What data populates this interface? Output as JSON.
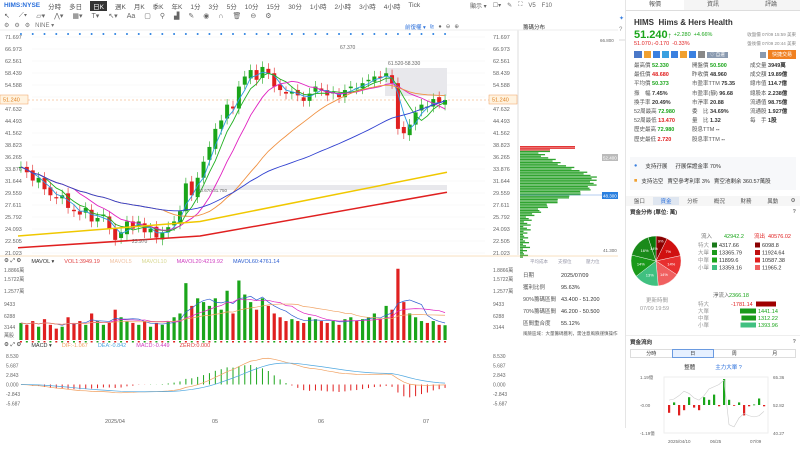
{
  "topbar": {
    "symbol": "HIMS:NYSE",
    "periods": [
      "分時",
      "多日",
      "日K",
      "週K",
      "月K",
      "季K",
      "年K",
      "1分",
      "3分",
      "5分",
      "10分",
      "15分",
      "30分",
      "1小時",
      "2小時",
      "3小時",
      "4小時",
      "Tick"
    ],
    "active_period": "日K"
  },
  "top_right": {
    "display": "顯示",
    "v5": "V5",
    "f10": "F10"
  },
  "indicator_row": {
    "name": "NINE"
  },
  "chart_ctrl": {
    "adjust": "前復權",
    "chip_title": "籌碼分布"
  },
  "price_axis": [
    "71.697",
    "66.973",
    "62.561",
    "58.439",
    "54.588",
    "51.240",
    "47.632",
    "44.493",
    "41.562",
    "38.823",
    "36.265",
    "33.876",
    "31.644",
    "29.559",
    "27.611",
    "25.792",
    "24.093",
    "22.505",
    "21.023"
  ],
  "current_price_tag": "51.240",
  "annotations": {
    "high": "67.370",
    "range": "61.520-58.330",
    "gap": "30.670-31.750",
    "low": "23.970"
  },
  "prices": [
    36,
    35,
    33.5,
    34,
    32,
    31,
    30.5,
    31,
    29,
    28.5,
    28,
    29,
    27,
    27.5,
    28,
    26,
    24.5,
    25.5,
    27,
    26,
    27,
    25.5,
    26,
    24.8,
    25.5,
    26.2,
    27,
    28.5,
    33,
    31,
    34,
    37,
    40,
    44,
    46,
    50,
    49,
    55,
    58,
    60,
    57,
    61,
    59,
    55,
    54,
    53,
    53.5,
    52.5,
    51,
    53,
    55,
    54,
    52.5,
    53.5,
    52,
    54,
    55,
    54.5,
    56,
    57,
    58,
    57.5,
    59,
    56,
    44,
    43,
    45,
    48,
    50,
    49.5,
    51.5,
    50.5,
    51.24
  ],
  "volumes": [
    0.45,
    0.4,
    0.5,
    0.35,
    0.55,
    0.4,
    0.3,
    0.35,
    0.6,
    0.45,
    0.5,
    0.4,
    0.7,
    0.5,
    0.4,
    0.45,
    0.8,
    0.6,
    0.5,
    0.45,
    0.4,
    0.5,
    0.35,
    0.45,
    0.4,
    0.5,
    0.6,
    0.7,
    1.5,
    0.9,
    1.1,
    1.0,
    0.9,
    1.1,
    0.8,
    1.3,
    0.7,
    1.57,
    1.2,
    1.0,
    0.8,
    1.1,
    0.9,
    0.7,
    0.6,
    0.5,
    0.55,
    0.5,
    0.45,
    0.6,
    0.55,
    0.5,
    0.45,
    0.5,
    0.4,
    0.55,
    0.6,
    0.5,
    0.55,
    0.6,
    0.7,
    0.55,
    0.9,
    0.8,
    1.88,
    1.0,
    0.7,
    0.6,
    0.5,
    0.45,
    0.5,
    0.4,
    0.39
  ],
  "mavol": {
    "label": "MAVOL",
    "vol1": "VOL1:3949.19",
    "m5": "MAVOL5",
    "m10": "MAVOL10",
    "m20": "MAVOL20:4219.92",
    "m60": "MAVOL60:4761.14"
  },
  "vol_axis": [
    "1.8866萬",
    "1.5722萬",
    "1.2577萬",
    "9433",
    "6288",
    "3144",
    "萬股"
  ],
  "macd": {
    "label": "MACD",
    "dif": "DIF:-1.067",
    "dea": "DEA:-0.842",
    "macd": "MACD:-0.449",
    "zero": "ZERO:0.000"
  },
  "macd_axis": [
    "8.530",
    "5.687",
    "2.843",
    "0.000",
    "-2.843",
    "-5.687"
  ],
  "date_axis": [
    "2025/04",
    "05",
    "06",
    "07"
  ],
  "chip": {
    "top": "66.800",
    "mid_tag": "48.300",
    "top_tag": "52.400",
    "bottom": "41.300",
    "legend": [
      "平均成本",
      "支撐位",
      "壓力位"
    ],
    "rows": [
      {
        "k": "日期",
        "v": "2025/07/09"
      },
      {
        "k": "獲利比例",
        "v": "95.63%"
      },
      {
        "k": "90%籌碼區間",
        "v": "43.400 - 51.200"
      },
      {
        "k": "70%籌碼區間",
        "v": "46.200 - 50.500"
      },
      {
        "k": "區間重合度",
        "v": "55.12%"
      }
    ],
    "note": "風險區域：大量籌碼獲利，需注意風險謹慎操作"
  },
  "rp": {
    "tabs": [
      "報價",
      "資訊",
      "評論"
    ],
    "ticker": "HIMS",
    "name": "Hims & Hers Health",
    "price": "51.240",
    "change": "+2.280",
    "pct": "+4.66%",
    "close_note": "收盤價 07/09 15:59 美東",
    "ah_price": "51.070",
    "ah_change": "-0.170",
    "ah_pct": "-0.33%",
    "ah_note": "盤後價 07/09 20:44 美東",
    "quick_trade": "快捷交易",
    "self_select": "自選",
    "stats": [
      [
        "最高價",
        "52.330",
        "g"
      ],
      [
        "開盤價",
        "50.500",
        "g"
      ],
      [
        "成交量",
        "3949萬",
        ""
      ],
      [
        "最低價",
        "48.680",
        "r"
      ],
      [
        "昨收價",
        "48.960",
        ""
      ],
      [
        "成交額",
        "19.89億",
        ""
      ],
      [
        "平均價",
        "50.373",
        "g"
      ],
      [
        "市盈率TTM",
        "75.35",
        ""
      ],
      [
        "總市值",
        "114.7億",
        ""
      ],
      [
        "振　幅",
        "7.45%",
        ""
      ],
      [
        "市盈率(靜)",
        "96.68",
        ""
      ],
      [
        "總股本",
        "2.238億",
        ""
      ],
      [
        "換手率",
        "20.49%",
        ""
      ],
      [
        "市淨率",
        "20.88",
        ""
      ],
      [
        "流通值",
        "98.75億",
        ""
      ],
      [
        "52周最高",
        "72.980",
        "g"
      ],
      [
        "委　比",
        "34.69%",
        ""
      ],
      [
        "流通股",
        "1.927億",
        ""
      ],
      [
        "52周最低",
        "13.470",
        "r"
      ],
      [
        "量　比",
        "1.32",
        ""
      ],
      [
        "每　手",
        "1股",
        ""
      ],
      [
        "歷史最高",
        "72.980",
        "g"
      ],
      [
        "股息TTM",
        "--",
        ""
      ],
      [
        "",
        "",
        ""
      ],
      [
        "歷史最低",
        "2.720",
        "r"
      ],
      [
        "股息率TTM",
        "--",
        ""
      ],
      [
        "",
        "",
        ""
      ]
    ],
    "margin": {
      "label": "支持孖展",
      "text": "孖展保證金率 70%"
    },
    "short": {
      "label": "支持沽空",
      "text1": "賣空參考利率 3%",
      "text2": "賣空池剩余 360.57萬股"
    },
    "subtabs": [
      "盤口",
      "資金",
      "分析",
      "概況",
      "財務",
      "異動"
    ],
    "fund_title": "資金分佈 (單位: 萬)",
    "inflow_label": "流入",
    "inflow": "42942.2",
    "outflow_label": "流出",
    "outflow": "40576.02",
    "flow_rows": [
      {
        "k": "特大",
        "in": "4317.66",
        "out": "6098.8"
      },
      {
        "k": "大單",
        "in": "13365.79",
        "out": "11924.64"
      },
      {
        "k": "中單",
        "in": "11899.6",
        "out": "10587.38"
      },
      {
        "k": "小單",
        "in": "13359.16",
        "out": "11965.2"
      }
    ],
    "pie_labels": [
      "9%",
      "7%",
      "14%",
      "14%",
      "13%",
      "14%",
      "16%",
      "14%"
    ],
    "net_label": "淨流入",
    "net": "2366.18",
    "update_label": "更新時間",
    "update_time": "07/09 19:59",
    "net_rows": [
      {
        "k": "特大",
        "v": "-1781.14"
      },
      {
        "k": "大單",
        "v": "1441.14"
      },
      {
        "k": "中單",
        "v": "1312.22"
      },
      {
        "k": "小單",
        "v": "1393.96"
      }
    ],
    "flow_dir_title": "資金流向",
    "period_tabs": [
      "分時",
      "日",
      "周",
      "月"
    ],
    "mode_a": "整體",
    "mode_b": "主力大單",
    "mini_left": [
      "1.19億",
      "-0.00",
      "-1.19億"
    ],
    "mini_right": [
      "65.36",
      "52.82",
      "40.27"
    ],
    "mini_dates": [
      "2025/04/10",
      "06/25",
      "07/09"
    ],
    "mini_bars": [
      -0.3,
      0.1,
      -0.4,
      -0.2,
      0.3,
      -0.1,
      -0.2,
      0.3,
      0.2,
      0.4,
      -0.05,
      1.0,
      0.2,
      -0.02,
      0.1,
      -0.4,
      -0.05,
      0.02,
      0.25,
      -0.05
    ],
    "mini_line": [
      55,
      55.5,
      57,
      59,
      58,
      56,
      55,
      57,
      60,
      61,
      62,
      64,
      44,
      43,
      47,
      49,
      48,
      47.5,
      48,
      50
    ]
  }
}
